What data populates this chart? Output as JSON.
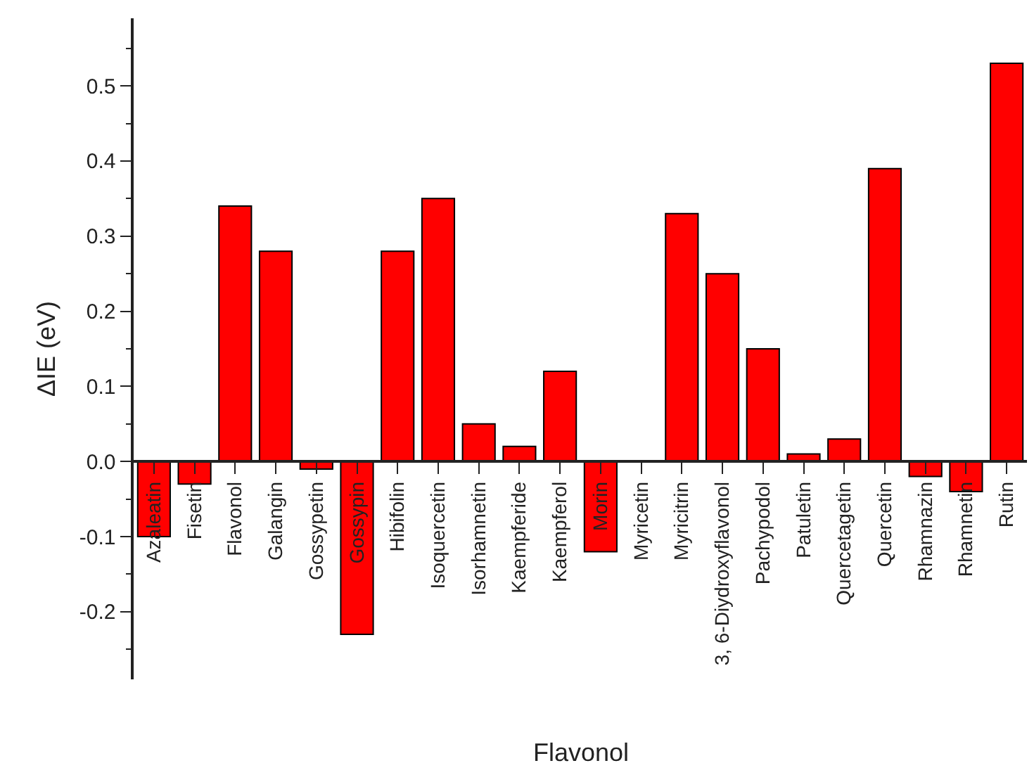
{
  "chart_data": {
    "type": "bar",
    "xlabel": "Flavonol",
    "ylabel": "ΔIE (eV)",
    "categories": [
      "Azaleatin",
      "Fisetin",
      "Flavonol",
      "Galangin",
      "Gossypetin",
      "Gossypin",
      "Hibifolin",
      "Isoquercetin",
      "Isorhamnetin",
      "Kaempferide",
      "Kaempferol",
      "Morin",
      "Myricetin",
      "Myricitrin",
      "3, 6-Diydroxyflavonol",
      "Pachypodol",
      "Patuletin",
      "Quercetagetin",
      "Quercetin",
      "Rhamnazin",
      "Rhamnetin",
      "Rutin"
    ],
    "values": [
      -0.1,
      -0.03,
      0.34,
      0.28,
      -0.01,
      -0.23,
      0.28,
      0.35,
      0.05,
      0.02,
      0.12,
      -0.12,
      0,
      0.33,
      0.25,
      0.15,
      0.01,
      0.03,
      0.39,
      -0.02,
      -0.04,
      0.53
    ],
    "color": "#ff0000",
    "ylim": [
      -0.29,
      0.59
    ],
    "yticks": [
      {
        "value": -0.25,
        "label": null
      },
      {
        "value": -0.2,
        "label": "-0.2"
      },
      {
        "value": -0.15,
        "label": null
      },
      {
        "value": -0.1,
        "label": "-0.1"
      },
      {
        "value": -0.05,
        "label": null
      },
      {
        "value": 0,
        "label": "0.0"
      },
      {
        "value": 0.05,
        "label": null
      },
      {
        "value": 0.1,
        "label": "0.1"
      },
      {
        "value": 0.15,
        "label": null
      },
      {
        "value": 0.2,
        "label": "0.2"
      },
      {
        "value": 0.25,
        "label": null
      },
      {
        "value": 0.3,
        "label": "0.3"
      },
      {
        "value": 0.35,
        "label": null
      },
      {
        "value": 0.4,
        "label": "0.4"
      },
      {
        "value": 0.45,
        "label": null
      },
      {
        "value": 0.5,
        "label": "0.5"
      },
      {
        "value": 0.55,
        "label": null
      }
    ],
    "tick_labels": true
  }
}
